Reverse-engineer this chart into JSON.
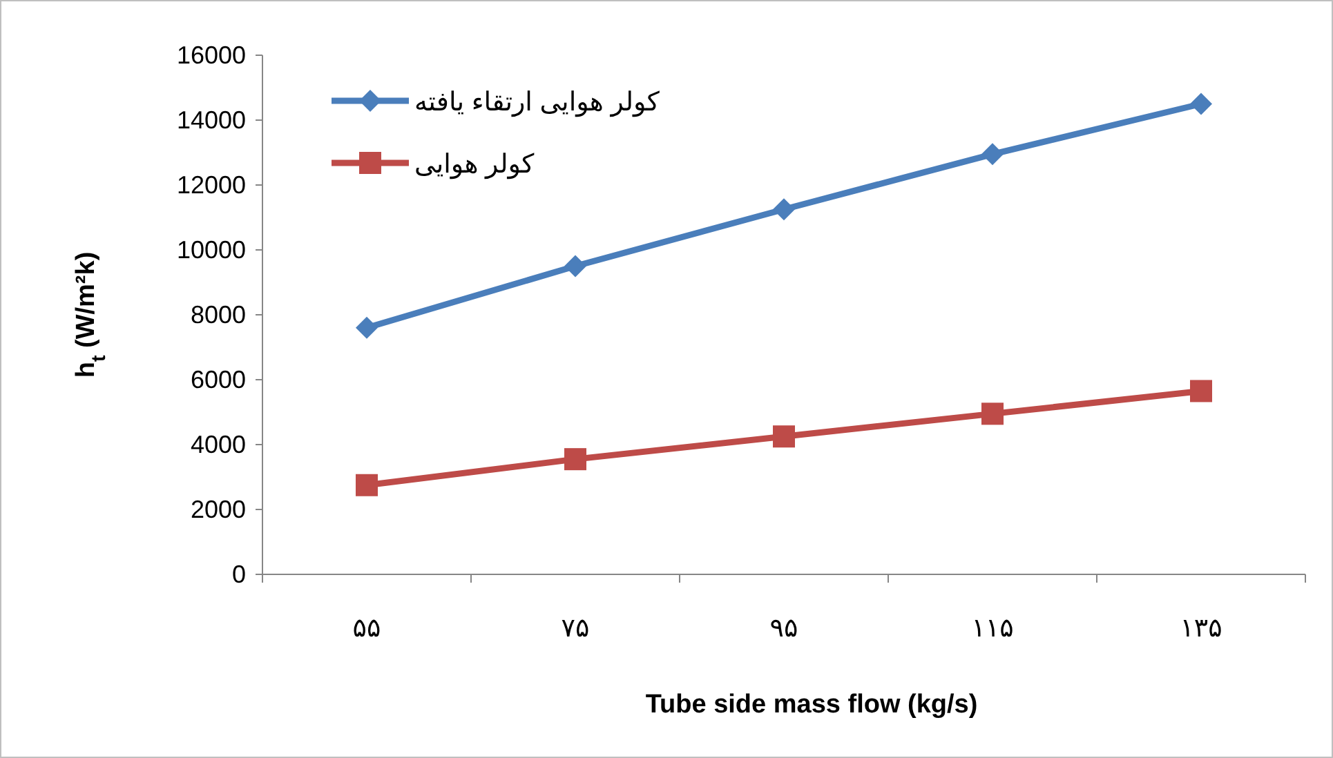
{
  "chart_data": {
    "type": "line",
    "xlabel": "Tube side mass flow (kg/s)",
    "ylabel": "h$_{t}$ (W/m²k)",
    "categories": [
      "۵۵",
      "۷۵",
      "۹۵",
      "۱۱۵",
      "۱۳۵"
    ],
    "series": [
      {
        "name": "کولر هوایی ارتقاء یافته",
        "color": "#4a7ebb",
        "marker": "diamond",
        "values": [
          7600,
          9500,
          11250,
          12950,
          14500
        ]
      },
      {
        "name": "کولر هوایی",
        "color": "#be4b48",
        "marker": "square",
        "values": [
          2750,
          3550,
          4250,
          4950,
          5650
        ]
      }
    ],
    "ylim": [
      0,
      16000
    ],
    "yticks": [
      0,
      2000,
      4000,
      6000,
      8000,
      10000,
      12000,
      14000,
      16000
    ],
    "grid": false,
    "legend": "top left",
    "line_style": "solid"
  }
}
